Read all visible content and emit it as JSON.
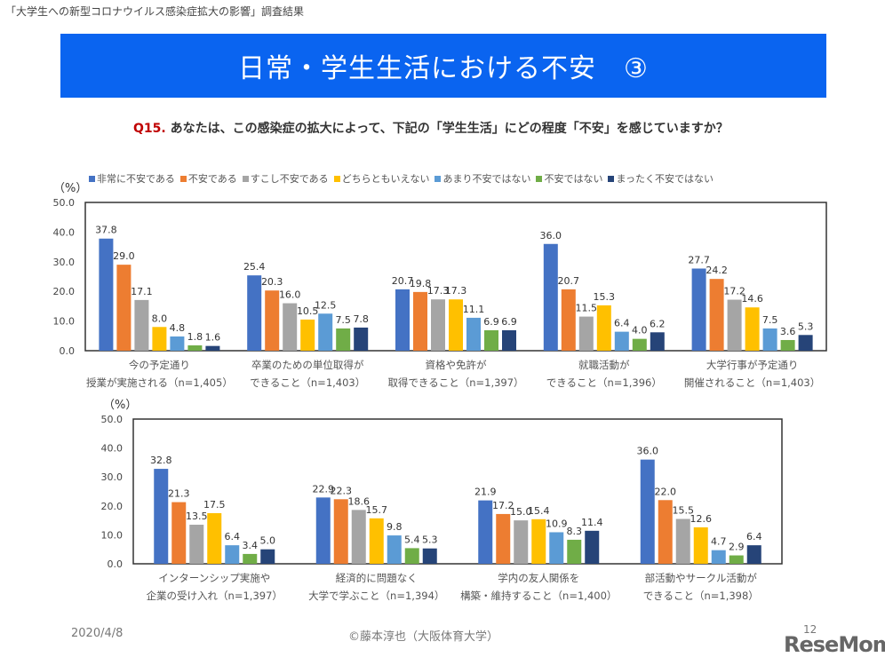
{
  "header": "「大学生への新型コロナウイルス感染症拡大の影響」調査結果",
  "banner_title": "日常・学生生活における不安　③",
  "question": {
    "num": "Q15.",
    "text": " あなたは、この感染症の拡大によって、下記の「学生生活」にどの程度「不安」を感じていますか？"
  },
  "footer": {
    "date": "2020/4/8",
    "copyright": "©藤本淳也（大阪体育大学）",
    "page": "12",
    "logo": "ReseMom"
  },
  "chart_data": [
    {
      "type": "bar",
      "ylabel": "（%）",
      "ylim": [
        0,
        50
      ],
      "yticks": [
        "0.0",
        "10.0",
        "20.0",
        "30.0",
        "40.0",
        "50.0"
      ],
      "legend": "top",
      "series_names": [
        "非常に不安である",
        "不安である",
        "すこし不安である",
        "どちらともいえない",
        "あまり不安ではない",
        "不安ではない",
        "まったく不安ではない"
      ],
      "colors": [
        "#4472c4",
        "#ed7d31",
        "#a5a5a5",
        "#ffc000",
        "#5b9bd5",
        "#70ad47",
        "#264478"
      ],
      "categories": [
        [
          "今の予定通り",
          "授業が実施される（n=1,405）"
        ],
        [
          "卒業のための単位取得が",
          "できること（n=1,403）"
        ],
        [
          "資格や免許が",
          "取得できること（n=1,397）"
        ],
        [
          "就職活動が",
          "できること（n=1,396）"
        ],
        [
          "大学行事が予定通り",
          "開催されること（n=1,403）"
        ]
      ],
      "values": [
        [
          37.8,
          29.0,
          17.1,
          8.0,
          4.8,
          1.8,
          1.6
        ],
        [
          25.4,
          20.3,
          16.0,
          10.5,
          12.5,
          7.5,
          7.8
        ],
        [
          20.7,
          19.8,
          17.3,
          17.3,
          11.1,
          6.9,
          6.9
        ],
        [
          36.0,
          20.7,
          11.5,
          15.3,
          6.4,
          4.0,
          6.2
        ],
        [
          27.7,
          24.2,
          17.2,
          14.6,
          7.5,
          3.6,
          5.3
        ]
      ]
    },
    {
      "type": "bar",
      "ylabel": "（%）",
      "ylim": [
        0,
        50
      ],
      "yticks": [
        "0.0",
        "10.0",
        "20.0",
        "30.0",
        "40.0",
        "50.0"
      ],
      "categories": [
        [
          "インターンシップ実施や",
          "企業の受け入れ（n=1,397）"
        ],
        [
          "経済的に問題なく",
          "大学で学ぶこと（n=1,394）"
        ],
        [
          "学内の友人関係を",
          "構築・維持すること（n=1,400）"
        ],
        [
          "部活動やサークル活動が",
          "できること（n=1,398）"
        ]
      ],
      "values": [
        [
          32.8,
          21.3,
          13.5,
          17.5,
          6.4,
          3.4,
          5.0
        ],
        [
          22.9,
          22.3,
          18.6,
          15.7,
          9.8,
          5.4,
          5.3
        ],
        [
          21.9,
          17.2,
          15.0,
          15.4,
          10.9,
          8.3,
          11.4
        ],
        [
          36.0,
          22.0,
          15.5,
          12.6,
          4.7,
          2.9,
          6.4
        ]
      ]
    }
  ]
}
